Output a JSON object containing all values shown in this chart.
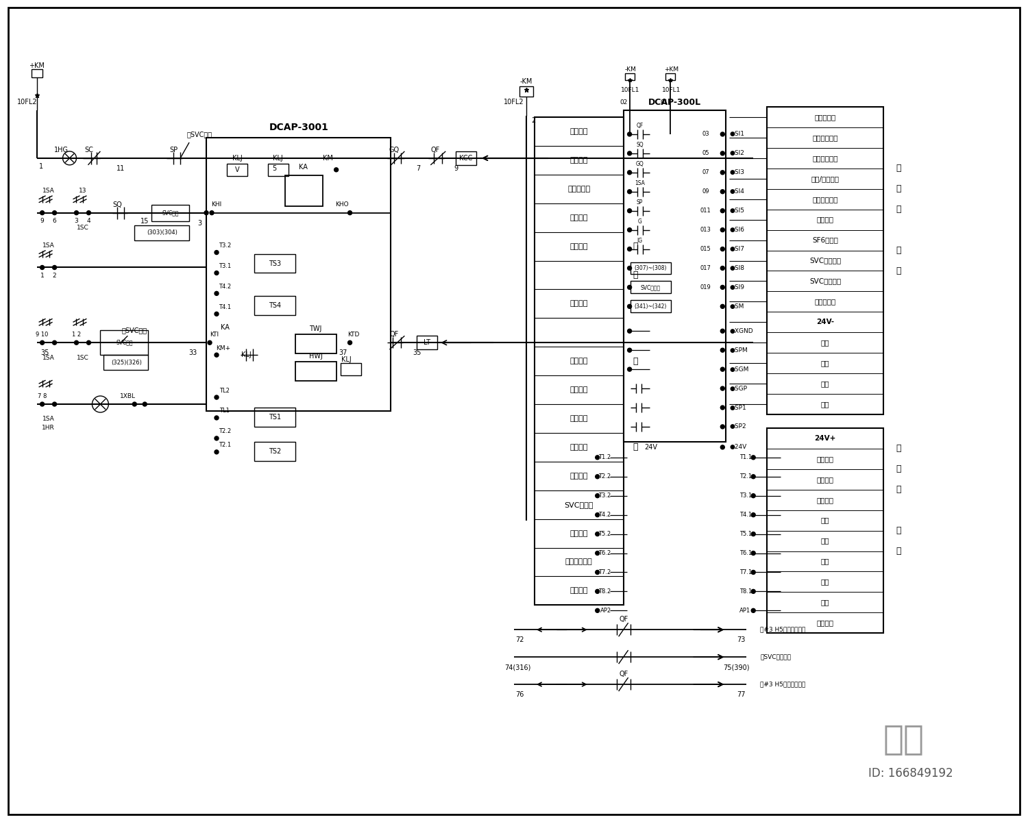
{
  "bg_color": "#ffffff",
  "line_color": "#000000",
  "lw": 1.0,
  "figsize": [
    15,
    12
  ],
  "dpi": 100,
  "watermark": "知末",
  "watermark_id": "ID: 166849192",
  "control_items": [
    "空气开关",
    "分闸指示",
    "防跳继电器",
    "手动合闸",
    "防跳闭锁",
    "",
    "遥控合闸",
    "",
    "合闸保持",
    "跳闸位置",
    "跳闸保持",
    "合闸位置",
    "手动跳闸",
    "SVC跳闸闸",
    "遥控跳闸",
    "合闸位置指示",
    "保护跳闸",
    "",
    ""
  ],
  "input_labels": [
    "断路器位置",
    "手车工作位置",
    "弹簧储能状态",
    "远方/就地信号",
    "手车试验位置",
    "接地位置",
    "SF6气压低",
    "SVC事故报警",
    "SVC分合指令",
    "信号公共端",
    "24V-",
    "备用",
    "备用",
    "备用",
    "备用"
  ],
  "input_bold": [
    true,
    false,
    true,
    false,
    false,
    false,
    false,
    false,
    false,
    false,
    true,
    false,
    false,
    false,
    false
  ],
  "output_labels": [
    "24V+",
    "遥控跳闸",
    "保护跳闸",
    "遥控合闸",
    "备用",
    "备用",
    "备用",
    "备用",
    "备用",
    "失电告警"
  ],
  "output_bold": [
    true,
    true,
    false,
    false,
    false,
    false,
    false,
    false,
    false,
    false
  ],
  "dcap300l_inputs": [
    "QF",
    "SQ",
    "GQ",
    "1SA",
    "SP",
    "G",
    "IG",
    "(307)~(308)",
    "SVC控制柜",
    "(341)~(342)"
  ],
  "dcap300l_input_nums": [
    "03",
    "05",
    "07",
    "09",
    "011",
    "013",
    "015",
    "017",
    "019",
    ""
  ],
  "dcap300l_input_labels": [
    "SI1",
    "SI2",
    "SI3",
    "SI4",
    "SI5",
    "SI6",
    "SI7",
    "SI8",
    "SI9",
    "SM"
  ],
  "dcap300l_other": [
    "XGND",
    "SPM",
    "SGM",
    "SGP",
    "SP1",
    "SP2"
  ],
  "output_pairs": [
    [
      "T1.2",
      "T1.1"
    ],
    [
      "T2.2",
      "T2.1"
    ],
    [
      "T3.2",
      "T3.1"
    ],
    [
      "T4.2",
      "T4.1"
    ],
    [
      "T5.2",
      "T5.1"
    ],
    [
      "T6.2",
      "T6.1"
    ],
    [
      "T7.2",
      "T7.1"
    ],
    [
      "T8.2",
      "T8.1"
    ],
    [
      "AP2",
      "AP1"
    ]
  ]
}
